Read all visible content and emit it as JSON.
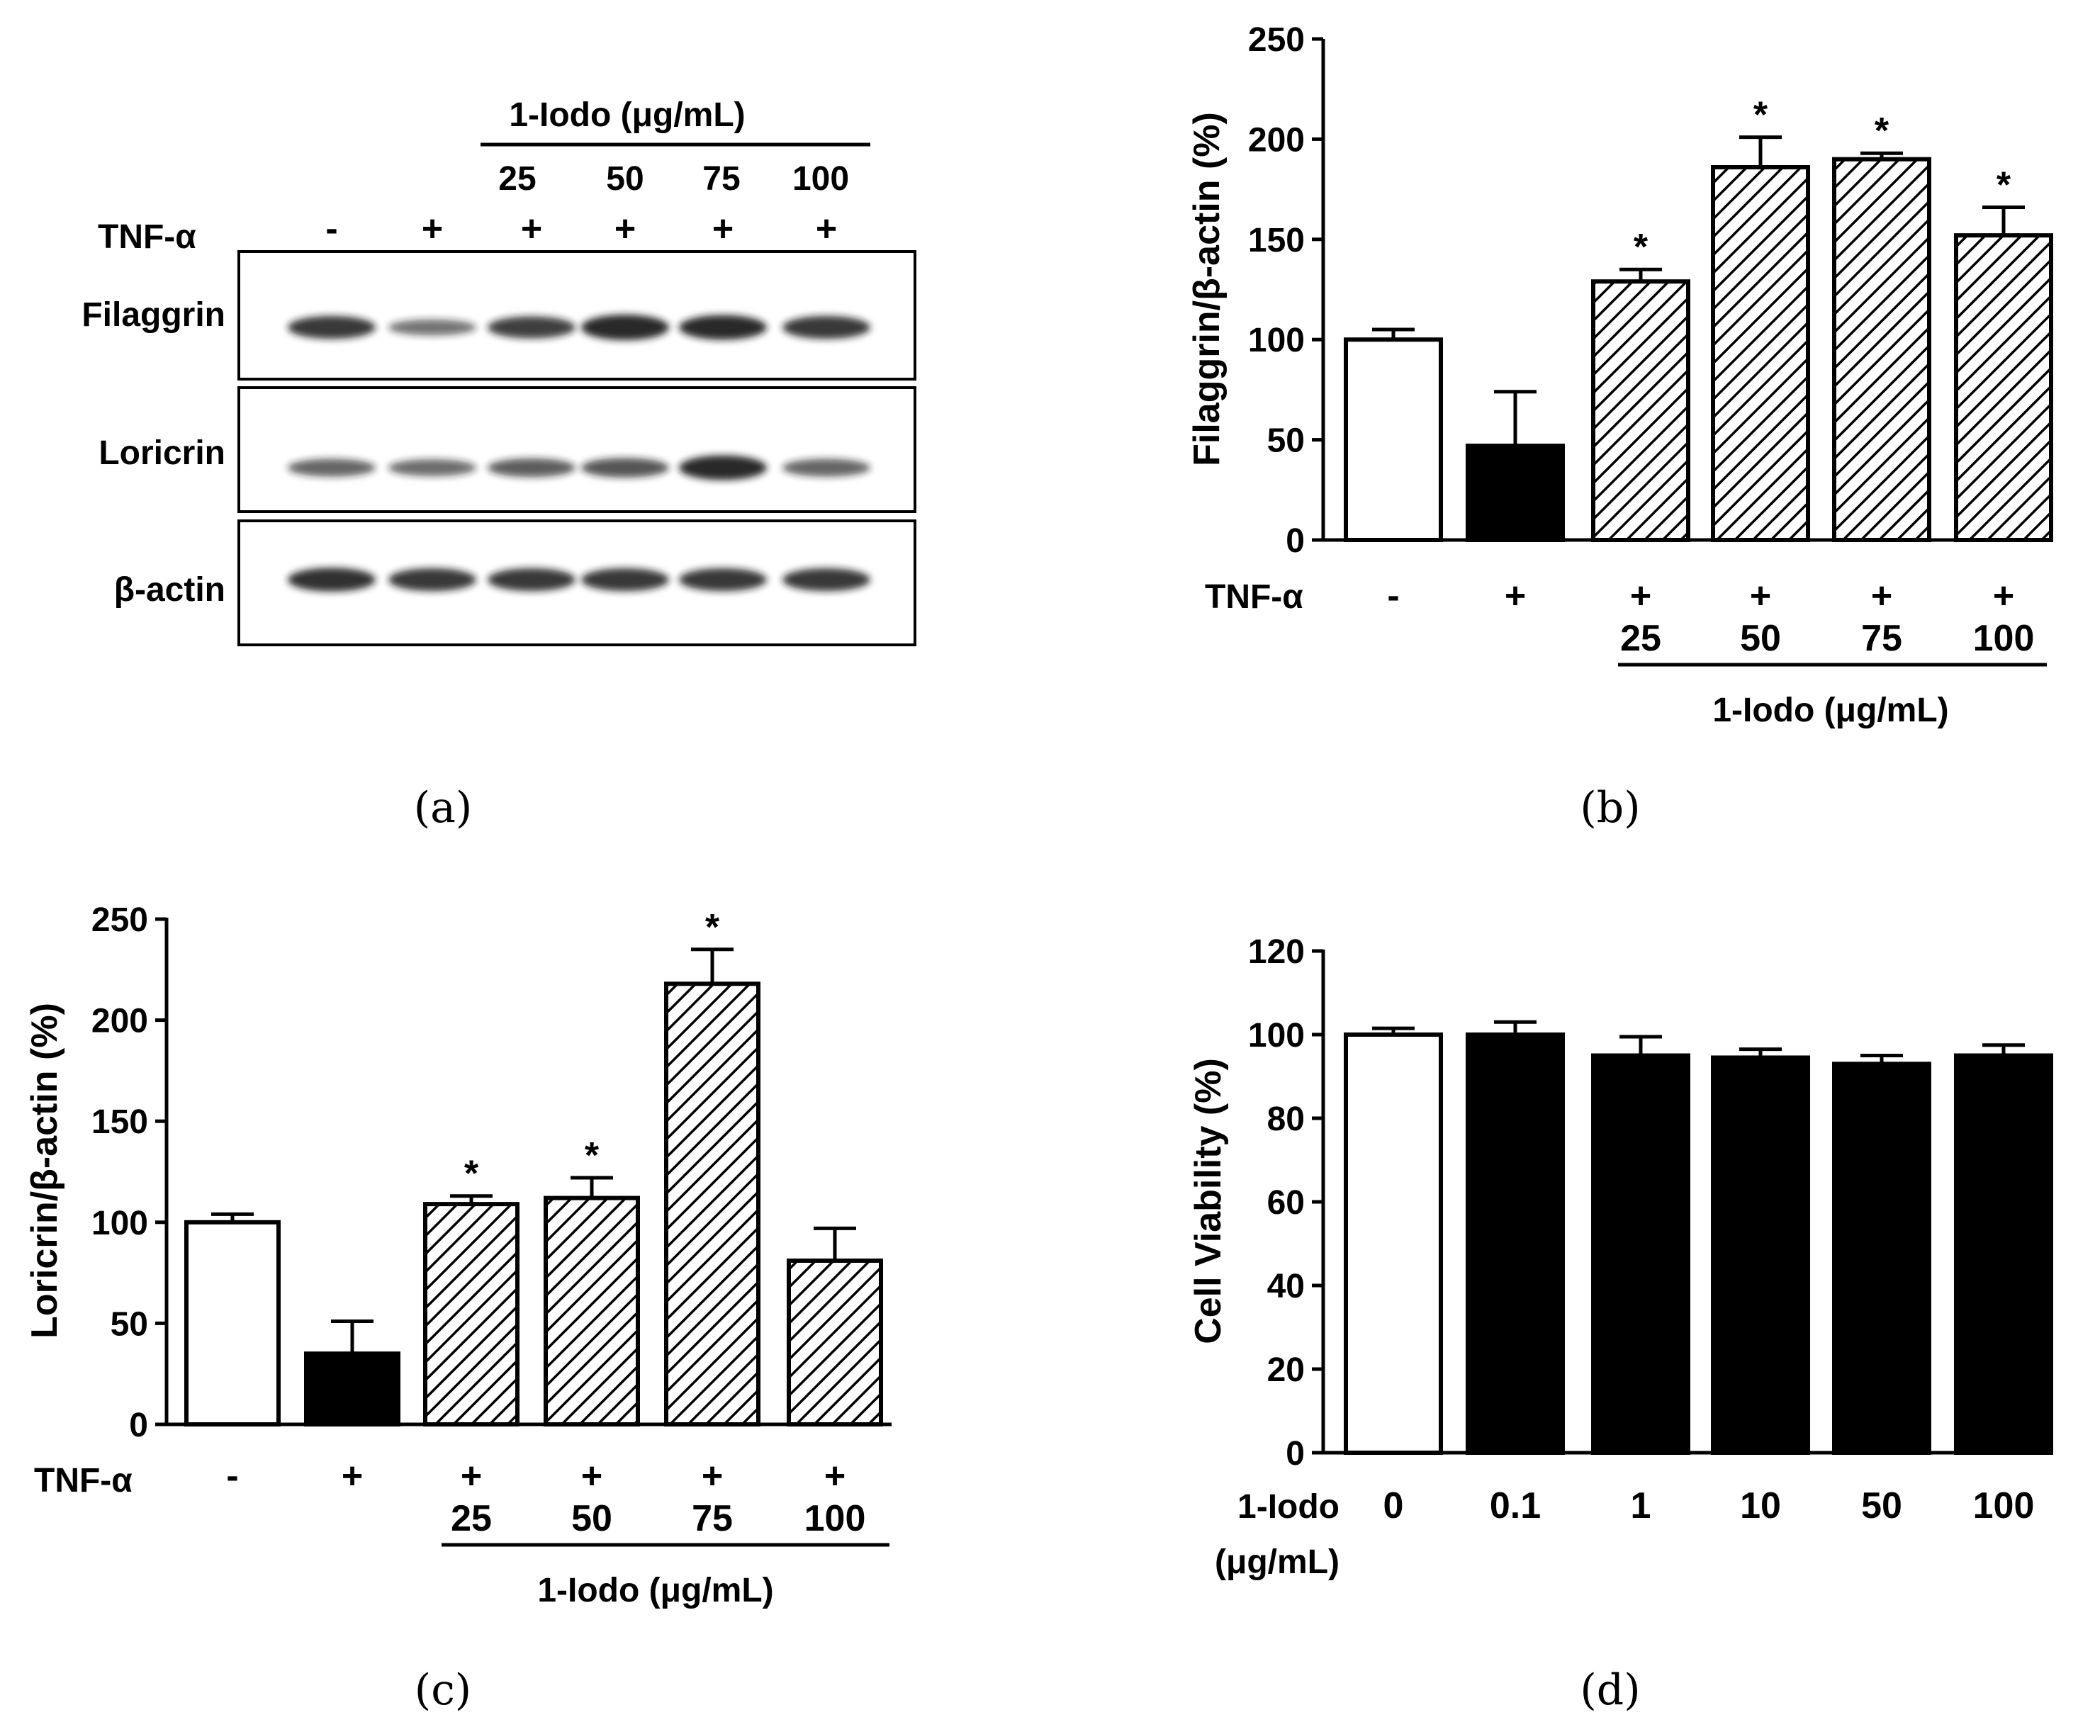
{
  "colors": {
    "ink": "#000000",
    "paper": "#ffffff",
    "band": "#1a1a1a"
  },
  "panel_a": {
    "caption": "(a)",
    "treatment_label": "1-Iodo (μg/mL)",
    "doses": [
      "25",
      "50",
      "75",
      "100"
    ],
    "tnf_label": "TNF-α",
    "tnf_signs": [
      "-",
      "+",
      "+",
      "+",
      "+",
      "+"
    ],
    "blots": [
      {
        "label": "Filaggrin",
        "intensities": [
          0.85,
          0.45,
          0.8,
          1.0,
          0.95,
          0.85
        ]
      },
      {
        "label": "Loricrin",
        "intensities": [
          0.55,
          0.5,
          0.6,
          0.65,
          0.95,
          0.55
        ]
      },
      {
        "label": "β-actin",
        "intensities": [
          0.9,
          0.85,
          0.85,
          0.85,
          0.85,
          0.85
        ]
      }
    ]
  },
  "chart_data": [
    {
      "panel": "b",
      "type": "bar",
      "caption": "(b)",
      "ylabel": "Filaggrin/β-actin (%)",
      "ylim": [
        0,
        250
      ],
      "yticks": [
        "0",
        "50",
        "100",
        "150",
        "200",
        "250"
      ],
      "row_label": "TNF-α",
      "tnf_signs": [
        "-",
        "+",
        "+",
        "+",
        "+",
        "+"
      ],
      "doses": [
        "",
        "",
        "25",
        "50",
        "75",
        "100"
      ],
      "group_label": "1-Iodo (μg/mL)",
      "values": [
        100,
        47,
        129,
        186,
        190,
        152
      ],
      "errors": [
        5,
        27,
        6,
        15,
        3,
        14
      ],
      "fills": [
        "white",
        "black",
        "hatch",
        "hatch",
        "hatch",
        "hatch"
      ],
      "significance": [
        "",
        "",
        "*",
        "*",
        "*",
        "*"
      ]
    },
    {
      "panel": "c",
      "type": "bar",
      "caption": "(c)",
      "ylabel": "Loricrin/β-actin (%)",
      "ylim": [
        0,
        250
      ],
      "yticks": [
        "0",
        "50",
        "100",
        "150",
        "200",
        "250"
      ],
      "row_label": "TNF-α",
      "tnf_signs": [
        "-",
        "+",
        "+",
        "+",
        "+",
        "+"
      ],
      "doses": [
        "",
        "",
        "25",
        "50",
        "75",
        "100"
      ],
      "group_label": "1-Iodo (μg/mL)",
      "values": [
        100,
        35,
        109,
        112,
        218,
        81
      ],
      "errors": [
        4,
        16,
        4,
        10,
        17,
        16
      ],
      "fills": [
        "white",
        "black",
        "hatch",
        "hatch",
        "hatch",
        "hatch"
      ],
      "significance": [
        "",
        "",
        "*",
        "*",
        "*",
        ""
      ]
    },
    {
      "panel": "d",
      "type": "bar",
      "caption": "(d)",
      "ylabel": "Cell Viability (%)",
      "ylim": [
        0,
        120
      ],
      "yticks": [
        "0",
        "20",
        "40",
        "60",
        "80",
        "100",
        "120"
      ],
      "row_label": "1-Iodo",
      "row_label_2": "(μg/mL)",
      "categories": [
        "0",
        "0.1",
        "1",
        "10",
        "50",
        "100"
      ],
      "values": [
        100,
        100,
        95,
        94.5,
        93,
        95
      ],
      "errors": [
        1.5,
        3,
        4.5,
        2,
        2,
        2.5
      ],
      "fills": [
        "white",
        "black",
        "black",
        "black",
        "black",
        "black"
      ],
      "significance": [
        "",
        "",
        "",
        "",
        "",
        ""
      ]
    }
  ]
}
